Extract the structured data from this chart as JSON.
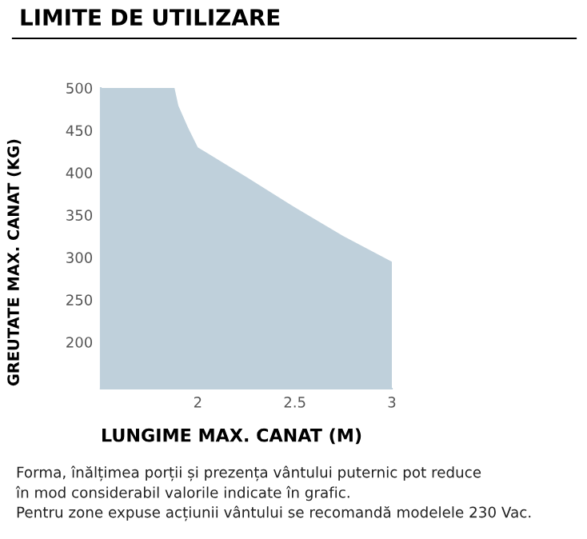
{
  "chart_data": {
    "type": "area",
    "title": "LIMITE DE UTILIZARE",
    "xlabel": "LUNGIME MAX. CANAT (M)",
    "ylabel": "GREUTATE MAX. CANAT (KG)",
    "x": [
      1.5,
      1.88,
      1.9,
      1.95,
      2.0,
      2.25,
      2.5,
      2.75,
      3.0
    ],
    "series": [
      {
        "color": "#bfd0db",
        "values": [
          500,
          500,
          479,
          453,
          430,
          395,
          359,
          325,
          295
        ]
      }
    ],
    "xlim": [
      1.5,
      3
    ],
    "ylim": [
      145,
      500
    ],
    "xticks": [
      2,
      2.5,
      3
    ],
    "yticks": [
      200,
      250,
      300,
      350,
      400,
      450,
      500
    ],
    "grid": false,
    "legend": false,
    "annotations": [
      "Forma, înălțimea porții și prezența vântului puternic pot reduce",
      "în mod considerabil valorile indicate în grafic.",
      "Pentru zone expuse acțiunii vântului se recomandă modelele 230 Vac."
    ]
  }
}
